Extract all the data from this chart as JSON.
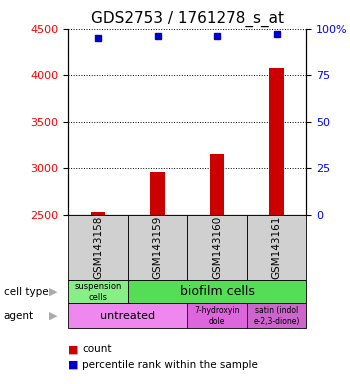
{
  "title": "GDS2753 / 1761278_s_at",
  "samples": [
    "GSM143158",
    "GSM143159",
    "GSM143160",
    "GSM143161"
  ],
  "counts": [
    2530,
    2960,
    3160,
    4080
  ],
  "percentile_ranks": [
    95,
    96,
    96,
    97
  ],
  "ylim_left": [
    2500,
    4500
  ],
  "ylim_right": [
    0,
    100
  ],
  "yticks_left": [
    2500,
    3000,
    3500,
    4000,
    4500
  ],
  "yticks_right": [
    0,
    25,
    50,
    75,
    100
  ],
  "bar_color": "#cc0000",
  "dot_color": "#0000cc",
  "bar_bottom": 2500,
  "sample_box_color": "#d0d0d0",
  "cell_type_colors": [
    "#88ee88",
    "#55dd55"
  ],
  "agent_colors": [
    "#ee88ee",
    "#dd66dd",
    "#cc66cc"
  ],
  "background_color": "#ffffff",
  "title_fontsize": 11,
  "tick_fontsize": 8,
  "sample_label_fontsize": 7.5
}
